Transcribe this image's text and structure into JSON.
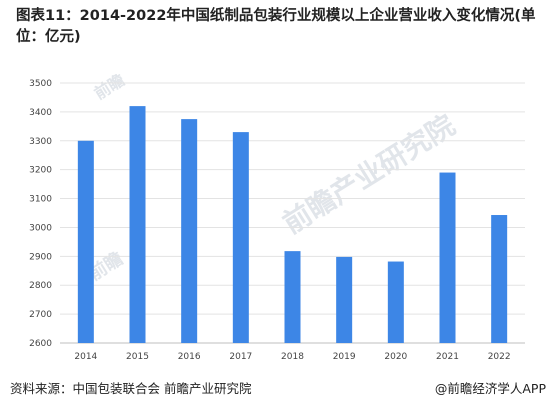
{
  "chart_data": {
    "type": "bar",
    "title": "图表11：2014-2022年中国纸制品包装行业规模以上企业营业收入变化情况(单位：亿元)",
    "categories": [
      "2014",
      "2015",
      "2016",
      "2017",
      "2018",
      "2019",
      "2020",
      "2021",
      "2022"
    ],
    "values": [
      3300,
      3420,
      3375,
      3330,
      2918,
      2898,
      2882,
      3190,
      3043
    ],
    "ylim": [
      2600,
      3500
    ],
    "yticks": [
      2600,
      2700,
      2800,
      2900,
      3000,
      3100,
      3200,
      3300,
      3400,
      3500
    ],
    "grid": true,
    "bar_color": "#3d86e6"
  },
  "footer": {
    "source": "资料来源：中国包装联合会 前瞻产业研究院",
    "credit": "@前瞻经济学人APP"
  },
  "watermark": {
    "text1": "前瞻",
    "text2": "前瞻产业研究院",
    "text3": "前瞻"
  }
}
